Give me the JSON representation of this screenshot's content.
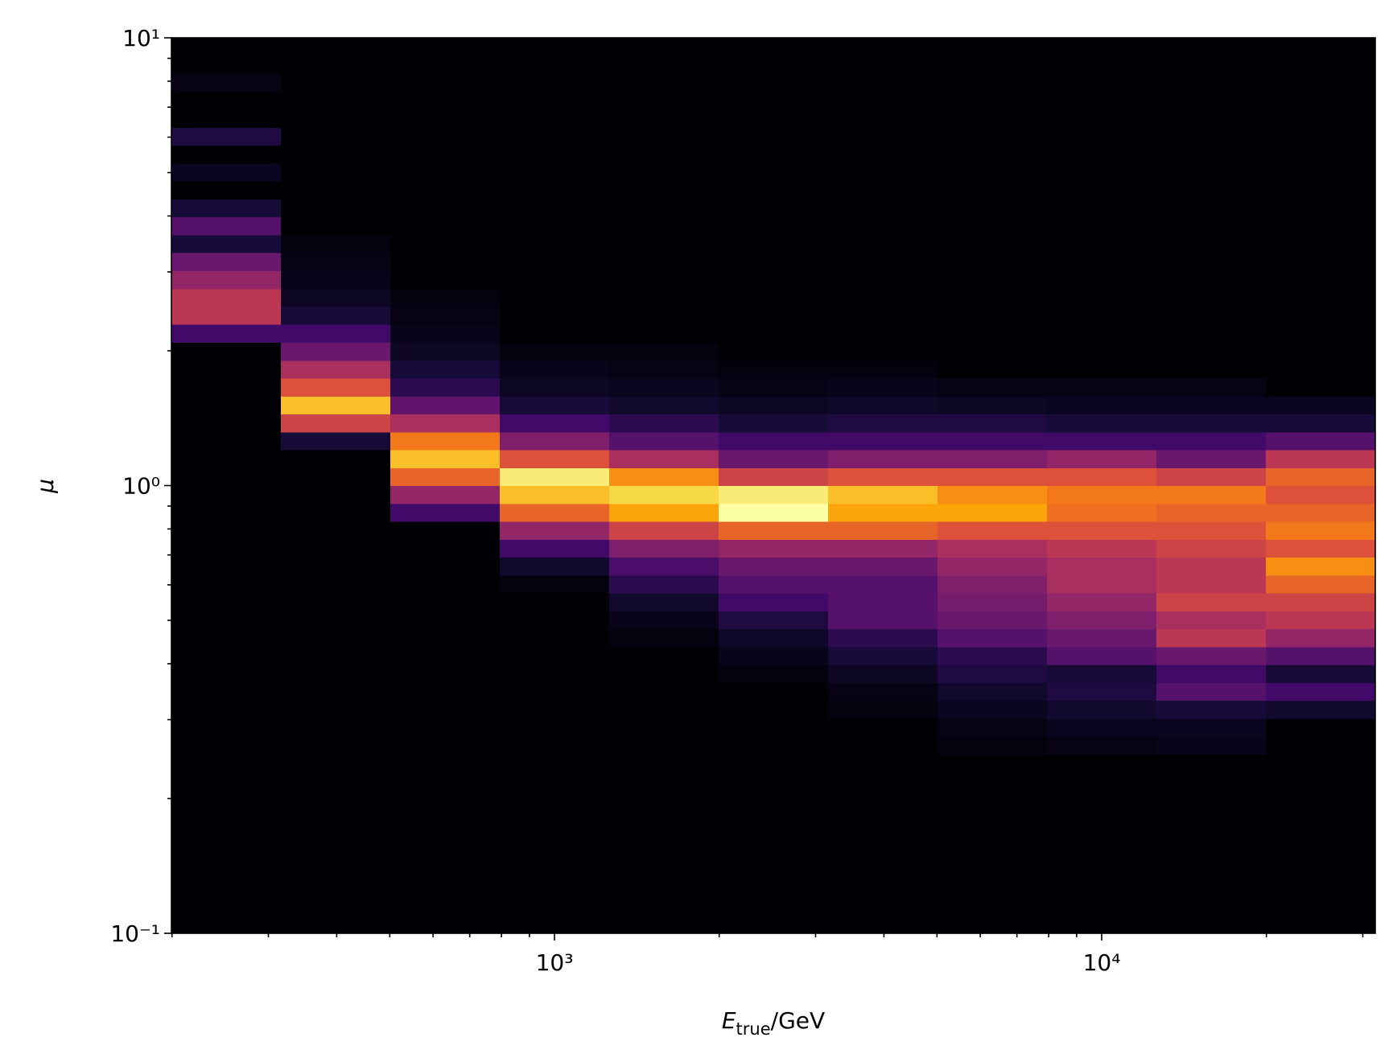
{
  "chart_data": {
    "type": "heatmap",
    "colormap": "inferno",
    "xscale": "log",
    "yscale": "log",
    "xlabel": {
      "symbol": "E",
      "subscript": "true",
      "unit": "/GeV"
    },
    "ylabel": "μ",
    "xlim": [
      199.5,
      31623
    ],
    "ylim": [
      0.1,
      10
    ],
    "xticks": [
      {
        "value": 1000,
        "label": "10³"
      },
      {
        "value": 10000,
        "label": "10⁴"
      }
    ],
    "yticks": [
      {
        "value": 0.1,
        "label": "10⁻¹"
      },
      {
        "value": 1,
        "label": "10⁰"
      },
      {
        "value": 10,
        "label": "10¹"
      }
    ],
    "xminorticks": [
      200,
      300,
      400,
      500,
      600,
      700,
      800,
      900,
      2000,
      3000,
      4000,
      5000,
      6000,
      7000,
      8000,
      9000,
      20000,
      30000
    ],
    "yminorticks": [
      0.2,
      0.3,
      0.4,
      0.5,
      0.6,
      0.7,
      0.8,
      0.9,
      2,
      3,
      4,
      5,
      6,
      7,
      8,
      9
    ],
    "x_edges": [
      199.5,
      316.2,
      501.2,
      794.3,
      1258.9,
      1995.3,
      3162.3,
      5011.9,
      7943.3,
      12589,
      19953,
      31623
    ],
    "y_edges": [
      0.1,
      0.1096,
      0.1202,
      0.1318,
      0.1445,
      0.1585,
      0.1738,
      0.1905,
      0.2089,
      0.2291,
      0.2512,
      0.2754,
      0.302,
      0.3311,
      0.3631,
      0.3981,
      0.4365,
      0.4786,
      0.5248,
      0.5754,
      0.631,
      0.6918,
      0.7586,
      0.8318,
      0.912,
      1,
      1.096,
      1.202,
      1.318,
      1.445,
      1.585,
      1.738,
      1.905,
      2.089,
      2.291,
      2.512,
      2.754,
      3.02,
      3.311,
      3.631,
      3.981,
      4.365,
      4.786,
      5.248,
      5.754,
      6.31,
      6.918,
      7.586,
      8.318,
      9.12,
      10
    ],
    "zlim": [
      0,
      1
    ],
    "values": [
      [
        0,
        0,
        0,
        0,
        0,
        0,
        0,
        0,
        0,
        0,
        0,
        0,
        0,
        0,
        0,
        0,
        0,
        0,
        0,
        0,
        0,
        0,
        0,
        0,
        0,
        0,
        0,
        0,
        0,
        0,
        0,
        0,
        0,
        0.2,
        0.5,
        0.5,
        0.4,
        0.3,
        0.1,
        0.25,
        0.1,
        0,
        0.05,
        0,
        0.12,
        0,
        0,
        0.03,
        0,
        0
      ],
      [
        0,
        0,
        0,
        0,
        0,
        0,
        0,
        0,
        0,
        0,
        0,
        0,
        0,
        0,
        0,
        0,
        0,
        0,
        0,
        0,
        0,
        0,
        0,
        0,
        0,
        0,
        0,
        0.1,
        0.55,
        0.85,
        0.6,
        0.45,
        0.3,
        0.2,
        0.1,
        0.06,
        0.04,
        0.03,
        0.02,
        0,
        0,
        0,
        0,
        0,
        0,
        0,
        0,
        0,
        0,
        0
      ],
      [
        0,
        0,
        0,
        0,
        0,
        0,
        0,
        0,
        0,
        0,
        0,
        0,
        0,
        0,
        0,
        0,
        0,
        0,
        0,
        0,
        0,
        0,
        0,
        0.2,
        0.4,
        0.65,
        0.85,
        0.7,
        0.45,
        0.28,
        0.15,
        0.1,
        0.06,
        0.04,
        0.03,
        0.02,
        0,
        0,
        0,
        0,
        0,
        0,
        0,
        0,
        0,
        0,
        0,
        0,
        0,
        0
      ],
      [
        0,
        0,
        0,
        0,
        0,
        0,
        0,
        0,
        0,
        0,
        0,
        0,
        0,
        0,
        0,
        0,
        0,
        0,
        0,
        0.02,
        0.08,
        0.2,
        0.4,
        0.65,
        0.85,
        0.95,
        0.6,
        0.35,
        0.2,
        0.1,
        0.06,
        0.04,
        0.02,
        0,
        0,
        0,
        0,
        0,
        0,
        0,
        0,
        0,
        0,
        0,
        0,
        0,
        0,
        0,
        0,
        0
      ],
      [
        0,
        0,
        0,
        0,
        0,
        0,
        0,
        0,
        0,
        0,
        0,
        0,
        0,
        0,
        0,
        0,
        0.02,
        0.04,
        0.08,
        0.15,
        0.22,
        0.35,
        0.55,
        0.8,
        0.9,
        0.75,
        0.45,
        0.25,
        0.15,
        0.08,
        0.05,
        0.03,
        0.02,
        0,
        0,
        0,
        0,
        0,
        0,
        0,
        0,
        0,
        0,
        0,
        0,
        0,
        0,
        0,
        0,
        0
      ],
      [
        0,
        0,
        0,
        0,
        0,
        0,
        0,
        0,
        0,
        0,
        0,
        0,
        0,
        0,
        0.02,
        0.04,
        0.07,
        0.12,
        0.2,
        0.25,
        0.3,
        0.4,
        0.65,
        1.0,
        0.95,
        0.55,
        0.3,
        0.2,
        0.1,
        0.06,
        0.03,
        0.02,
        0,
        0,
        0,
        0,
        0,
        0,
        0,
        0,
        0,
        0,
        0,
        0,
        0,
        0,
        0,
        0,
        0,
        0
      ],
      [
        0,
        0,
        0,
        0,
        0,
        0,
        0,
        0,
        0,
        0,
        0,
        0,
        0.02,
        0.03,
        0.06,
        0.1,
        0.15,
        0.25,
        0.25,
        0.25,
        0.3,
        0.4,
        0.65,
        0.8,
        0.85,
        0.6,
        0.35,
        0.2,
        0.12,
        0.07,
        0.04,
        0.02,
        0,
        0,
        0,
        0,
        0,
        0,
        0,
        0,
        0,
        0,
        0,
        0,
        0,
        0,
        0,
        0,
        0,
        0
      ],
      [
        0,
        0,
        0,
        0,
        0,
        0,
        0,
        0,
        0,
        0,
        0.02,
        0.03,
        0.05,
        0.08,
        0.12,
        0.15,
        0.25,
        0.3,
        0.33,
        0.35,
        0.4,
        0.45,
        0.6,
        0.8,
        0.75,
        0.6,
        0.35,
        0.2,
        0.12,
        0.06,
        0.03,
        0,
        0,
        0,
        0,
        0,
        0,
        0,
        0,
        0,
        0,
        0,
        0,
        0,
        0,
        0,
        0,
        0,
        0,
        0
      ],
      [
        0,
        0,
        0,
        0,
        0,
        0,
        0,
        0,
        0,
        0,
        0.03,
        0.05,
        0.08,
        0.12,
        0.1,
        0.25,
        0.3,
        0.35,
        0.4,
        0.45,
        0.45,
        0.5,
        0.6,
        0.68,
        0.7,
        0.6,
        0.4,
        0.2,
        0.1,
        0.05,
        0.03,
        0,
        0,
        0,
        0,
        0,
        0,
        0,
        0,
        0,
        0,
        0,
        0,
        0,
        0,
        0,
        0,
        0,
        0,
        0
      ],
      [
        0,
        0,
        0,
        0,
        0,
        0,
        0,
        0,
        0,
        0,
        0.04,
        0.05,
        0.1,
        0.25,
        0.2,
        0.3,
        0.5,
        0.45,
        0.55,
        0.5,
        0.5,
        0.55,
        0.6,
        0.65,
        0.7,
        0.55,
        0.3,
        0.2,
        0.1,
        0.05,
        0.03,
        0,
        0,
        0,
        0,
        0,
        0,
        0,
        0,
        0,
        0,
        0,
        0,
        0,
        0,
        0,
        0,
        0,
        0,
        0
      ],
      [
        0,
        0,
        0,
        0,
        0,
        0,
        0,
        0,
        0,
        0,
        0,
        0,
        0.08,
        0.2,
        0.1,
        0.25,
        0.4,
        0.5,
        0.55,
        0.65,
        0.75,
        0.6,
        0.7,
        0.65,
        0.6,
        0.65,
        0.5,
        0.25,
        0.1,
        0.05,
        0,
        0,
        0,
        0,
        0,
        0,
        0,
        0,
        0,
        0,
        0,
        0,
        0,
        0,
        0,
        0,
        0,
        0,
        0,
        0
      ]
    ]
  }
}
